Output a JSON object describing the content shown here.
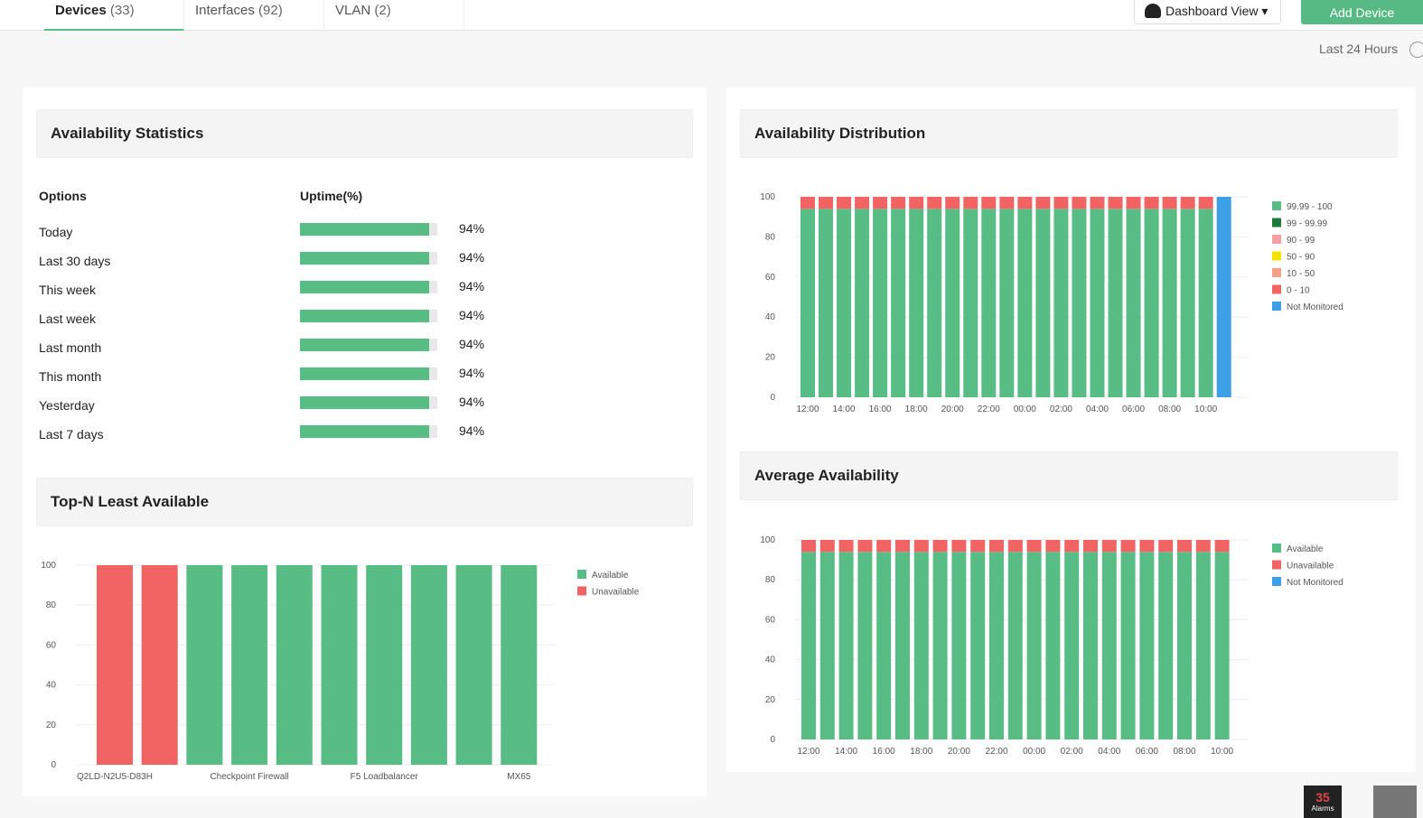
{
  "tabs": [
    {
      "label": "Devices",
      "count": "(33)"
    },
    {
      "label": "Interfaces",
      "count": "(92)"
    },
    {
      "label": "VLAN",
      "count": "(2)"
    }
  ],
  "toolbar": {
    "dashboard_view": "Dashboard View",
    "add_device": "Add Device",
    "time_range": "Last 24 Hours"
  },
  "stats": {
    "title": "Availability Statistics",
    "col_options": "Options",
    "col_uptime": "Uptime(%)",
    "rows": [
      {
        "label": "Today",
        "value": 94,
        "text": "94%"
      },
      {
        "label": "Last 30 days",
        "value": 94,
        "text": "94%"
      },
      {
        "label": "This week",
        "value": 94,
        "text": "94%"
      },
      {
        "label": "Last week",
        "value": 94,
        "text": "94%"
      },
      {
        "label": "Last month",
        "value": 94,
        "text": "94%"
      },
      {
        "label": "This month",
        "value": 94,
        "text": "94%"
      },
      {
        "label": "Yesterday",
        "value": 94,
        "text": "94%"
      },
      {
        "label": "Last 7 days",
        "value": 94,
        "text": "94%"
      }
    ]
  },
  "topn": {
    "title": "Top-N Least Available"
  },
  "dist": {
    "title": "Availability Distribution"
  },
  "avg": {
    "title": "Average Availability"
  },
  "alarms": {
    "count": "35",
    "label": "Alarms"
  },
  "colors": {
    "green": "#57bd84",
    "red": "#f26464",
    "blue": "#3d9fe6",
    "accent": "#57b984"
  },
  "chart_data": [
    {
      "id": "topn",
      "type": "bar",
      "stacked": true,
      "ylim": [
        0,
        100
      ],
      "yticks": [
        0,
        20,
        40,
        60,
        80,
        100
      ],
      "grid": true,
      "legend": "right",
      "categories": [
        "Q2LD-N2U5-D83H",
        "",
        "",
        "Checkpoint Firewall",
        "",
        "",
        "F5 Loadbalancer",
        "",
        "",
        "MX65"
      ],
      "series": [
        {
          "name": "Available",
          "color": "#57bd84",
          "values": [
            0,
            0,
            100,
            100,
            100,
            100,
            100,
            100,
            100,
            100
          ]
        },
        {
          "name": "Unavailable",
          "color": "#f26464",
          "values": [
            100,
            100,
            0,
            0,
            0,
            0,
            0,
            0,
            0,
            0
          ]
        }
      ]
    },
    {
      "id": "dist",
      "type": "bar",
      "stacked": true,
      "ylim": [
        0,
        100
      ],
      "yticks": [
        0,
        20,
        40,
        60,
        80,
        100
      ],
      "grid": true,
      "legend": "right",
      "categories": [
        "12:00",
        "13:00",
        "14:00",
        "15:00",
        "16:00",
        "17:00",
        "18:00",
        "19:00",
        "20:00",
        "21:00",
        "22:00",
        "23:00",
        "00:00",
        "01:00",
        "02:00",
        "03:00",
        "04:00",
        "05:00",
        "06:00",
        "07:00",
        "08:00",
        "09:00",
        "10:00",
        "11:00"
      ],
      "xtick_labels": [
        "12:00",
        "14:00",
        "16:00",
        "18:00",
        "20:00",
        "22:00",
        "00:00",
        "02:00",
        "04:00",
        "06:00",
        "08:00",
        "10:00"
      ],
      "series": [
        {
          "name": "99.99 - 100",
          "color": "#57bd84",
          "values": [
            94,
            94,
            94,
            94,
            94,
            94,
            94,
            94,
            94,
            94,
            94,
            94,
            94,
            94,
            94,
            94,
            94,
            94,
            94,
            94,
            94,
            94,
            94,
            0
          ]
        },
        {
          "name": "99 - 99.99",
          "color": "#1f7a3a",
          "values": [
            0,
            0,
            0,
            0,
            0,
            0,
            0,
            0,
            0,
            0,
            0,
            0,
            0,
            0,
            0,
            0,
            0,
            0,
            0,
            0,
            0,
            0,
            0,
            0
          ]
        },
        {
          "name": "90 - 99",
          "color": "#f2a0a4",
          "values": [
            0,
            0,
            0,
            0,
            0,
            0,
            0,
            0,
            0,
            0,
            0,
            0,
            0,
            0,
            0,
            0,
            0,
            0,
            0,
            0,
            0,
            0,
            0,
            0
          ]
        },
        {
          "name": "50 - 90",
          "color": "#f5e100",
          "values": [
            0,
            0,
            0,
            0,
            0,
            0,
            0,
            0,
            0,
            0,
            0,
            0,
            0,
            0,
            0,
            0,
            0,
            0,
            0,
            0,
            0,
            0,
            0,
            0
          ]
        },
        {
          "name": "10 - 50",
          "color": "#f4a084",
          "values": [
            0,
            0,
            0,
            0,
            0,
            0,
            0,
            0,
            0,
            0,
            0,
            0,
            0,
            0,
            0,
            0,
            0,
            0,
            0,
            0,
            0,
            0,
            0,
            0
          ]
        },
        {
          "name": "0 - 10",
          "color": "#f26464",
          "values": [
            6,
            6,
            6,
            6,
            6,
            6,
            6,
            6,
            6,
            6,
            6,
            6,
            6,
            6,
            6,
            6,
            6,
            6,
            6,
            6,
            6,
            6,
            6,
            0
          ]
        },
        {
          "name": "Not Monitored",
          "color": "#3d9fe6",
          "values": [
            0,
            0,
            0,
            0,
            0,
            0,
            0,
            0,
            0,
            0,
            0,
            0,
            0,
            0,
            0,
            0,
            0,
            0,
            0,
            0,
            0,
            0,
            0,
            100
          ]
        }
      ]
    },
    {
      "id": "avg",
      "type": "bar",
      "stacked": true,
      "ylim": [
        0,
        100
      ],
      "yticks": [
        0,
        20,
        40,
        60,
        80,
        100
      ],
      "grid": true,
      "legend": "right",
      "categories": [
        "12:00",
        "13:00",
        "14:00",
        "15:00",
        "16:00",
        "17:00",
        "18:00",
        "19:00",
        "20:00",
        "21:00",
        "22:00",
        "23:00",
        "00:00",
        "01:00",
        "02:00",
        "03:00",
        "04:00",
        "05:00",
        "06:00",
        "07:00",
        "08:00",
        "09:00",
        "10:00"
      ],
      "xtick_labels": [
        "12:00",
        "14:00",
        "16:00",
        "18:00",
        "20:00",
        "22:00",
        "00:00",
        "02:00",
        "04:00",
        "06:00",
        "08:00",
        "10:00"
      ],
      "series": [
        {
          "name": "Available",
          "color": "#57bd84",
          "values": [
            94,
            94,
            94,
            94,
            94,
            94,
            94,
            94,
            94,
            94,
            94,
            94,
            94,
            94,
            94,
            94,
            94,
            94,
            94,
            94,
            94,
            94,
            94
          ]
        },
        {
          "name": "Unavailable",
          "color": "#f26464",
          "values": [
            6,
            6,
            6,
            6,
            6,
            6,
            6,
            6,
            6,
            6,
            6,
            6,
            6,
            6,
            6,
            6,
            6,
            6,
            6,
            6,
            6,
            6,
            6
          ]
        },
        {
          "name": "Not Monitored",
          "color": "#3d9fe6",
          "values": [
            0,
            0,
            0,
            0,
            0,
            0,
            0,
            0,
            0,
            0,
            0,
            0,
            0,
            0,
            0,
            0,
            0,
            0,
            0,
            0,
            0,
            0,
            0
          ]
        }
      ]
    }
  ]
}
